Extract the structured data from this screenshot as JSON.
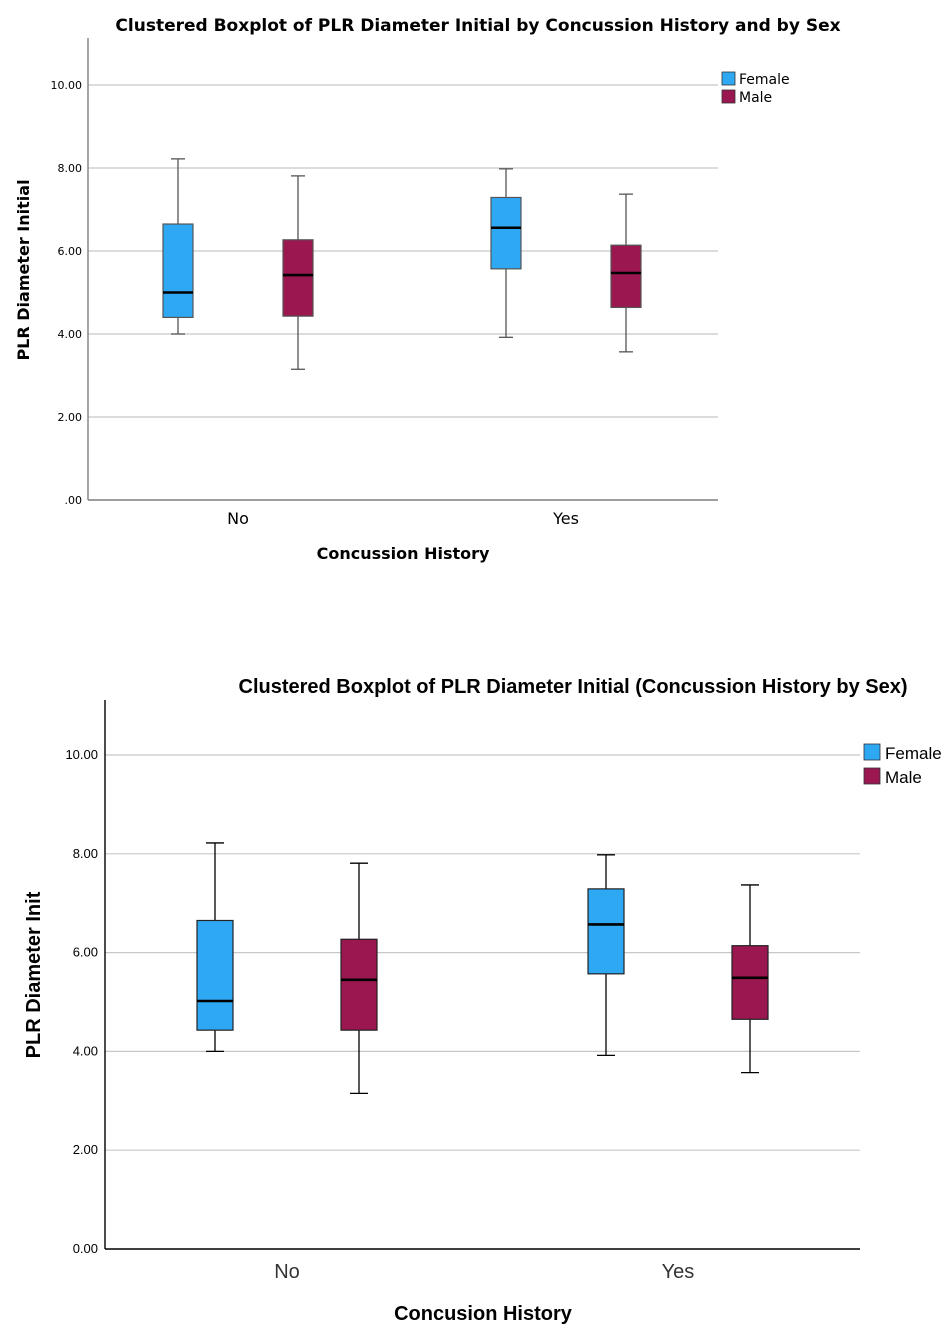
{
  "colors": {
    "female": "#2fa8f4",
    "male": "#9a1750",
    "grid": "#c8c8c8",
    "axis": "#7f7f7f"
  },
  "chart_data": [
    {
      "type": "boxplot",
      "title": "Clustered Boxplot of PLR Diameter Initial by Concussion History and by Sex",
      "xlabel": "Concussion History",
      "ylabel": "PLR Diameter Initial",
      "ylim": [
        0,
        11
      ],
      "yticks": [
        0,
        2,
        4,
        6,
        8,
        10
      ],
      "ytick_labels": [
        ".00",
        "2.00",
        "4.00",
        "6.00",
        "8.00",
        "10.00"
      ],
      "grid": true,
      "legend": "top-right",
      "categories": [
        "No",
        "Yes"
      ],
      "series": [
        {
          "name": "Female",
          "color": "#2fa8f4",
          "boxes": [
            {
              "min": 4.0,
              "q1": 4.4,
              "median": 5.0,
              "q3": 6.65,
              "max": 8.22
            },
            {
              "min": 3.92,
              "q1": 5.57,
              "median": 6.56,
              "q3": 7.29,
              "max": 7.98
            }
          ]
        },
        {
          "name": "Male",
          "color": "#9a1750",
          "boxes": [
            {
              "min": 3.15,
              "q1": 4.43,
              "median": 5.42,
              "q3": 6.27,
              "max": 7.81
            },
            {
              "min": 3.57,
              "q1": 4.64,
              "median": 5.47,
              "q3": 6.14,
              "max": 7.37
            }
          ]
        }
      ]
    },
    {
      "type": "boxplot",
      "title": "Clustered Boxplot of PLR Diameter Initial (Concussion History by Sex)",
      "xlabel": "Concusion History",
      "ylabel": "PLR Diameter Init",
      "ylim": [
        0,
        11
      ],
      "yticks": [
        0,
        2,
        4,
        6,
        8,
        10
      ],
      "ytick_labels": [
        "0.00",
        "2.00",
        "4.00",
        "6.00",
        "8.00",
        "10.00"
      ],
      "grid": true,
      "legend": "top-right",
      "categories": [
        "No",
        "Yes"
      ],
      "series": [
        {
          "name": "Female",
          "color": "#2fa8f4",
          "boxes": [
            {
              "min": 4.0,
              "q1": 4.43,
              "median": 5.02,
              "q3": 6.65,
              "max": 8.22
            },
            {
              "min": 3.92,
              "q1": 5.57,
              "median": 6.57,
              "q3": 7.29,
              "max": 7.98
            }
          ]
        },
        {
          "name": "Male",
          "color": "#9a1750",
          "boxes": [
            {
              "min": 3.15,
              "q1": 4.43,
              "median": 5.45,
              "q3": 6.27,
              "max": 7.81
            },
            {
              "min": 3.57,
              "q1": 4.65,
              "median": 5.49,
              "q3": 6.14,
              "max": 7.37
            }
          ]
        }
      ]
    }
  ]
}
